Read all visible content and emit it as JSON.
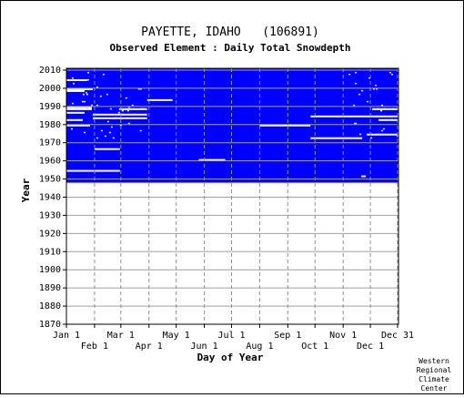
{
  "chart_data": {
    "type": "heatmap",
    "title": "PAYETTE, IDAHO   (106891)",
    "subtitle": "Observed Element : Daily Total Snowdepth",
    "xlabel": "Day of Year",
    "ylabel": "Year",
    "ylim": [
      1870,
      2011
    ],
    "xlim_days": [
      1,
      366
    ],
    "y_ticks": [
      2010,
      2000,
      1990,
      1980,
      1970,
      1960,
      1950,
      1940,
      1930,
      1920,
      1910,
      1900,
      1890,
      1880,
      1870
    ],
    "x_ticks_top_row": [
      {
        "label": "Jan 1",
        "day": 1
      },
      {
        "label": "Mar 1",
        "day": 61
      },
      {
        "label": "May 1",
        "day": 122
      },
      {
        "label": "Jul 1",
        "day": 183
      },
      {
        "label": "Sep 1",
        "day": 245
      },
      {
        "label": "Nov 1",
        "day": 306
      },
      {
        "label": "Dec 31",
        "day": 366
      }
    ],
    "x_ticks_bottom_row": [
      {
        "label": "Feb 1",
        "day": 32
      },
      {
        "label": "Apr 1",
        "day": 92
      },
      {
        "label": "Jun 1",
        "day": 153
      },
      {
        "label": "Aug 1",
        "day": 214
      },
      {
        "label": "Oct 1",
        "day": 275
      },
      {
        "label": "Dec 1",
        "day": 336
      }
    ],
    "data_color": "#0000ff",
    "period_of_record": {
      "start_year": 1948,
      "end_year": 2010
    },
    "missing_segments": [
      {
        "year": 2004,
        "start_day": 1,
        "end_day": 23
      },
      {
        "year": 1999,
        "start_day": 1,
        "end_day": 29
      },
      {
        "year": 1998,
        "start_day": 1,
        "end_day": 20
      },
      {
        "year": 1993,
        "start_day": 90,
        "end_day": 117
      },
      {
        "year": 1989,
        "start_day": 1,
        "end_day": 28
      },
      {
        "year": 1988,
        "start_day": 1,
        "end_day": 28
      },
      {
        "year": 1988,
        "start_day": 59,
        "end_day": 89
      },
      {
        "year": 1988,
        "start_day": 338,
        "end_day": 366
      },
      {
        "year": 1986,
        "start_day": 1,
        "end_day": 20
      },
      {
        "year": 1985,
        "start_day": 30,
        "end_day": 89
      },
      {
        "year": 1984,
        "start_day": 270,
        "end_day": 366
      },
      {
        "year": 1983,
        "start_day": 30,
        "end_day": 89
      },
      {
        "year": 1982,
        "start_day": 1,
        "end_day": 18
      },
      {
        "year": 1982,
        "start_day": 345,
        "end_day": 366
      },
      {
        "year": 1979,
        "start_day": 214,
        "end_day": 269
      },
      {
        "year": 1979,
        "start_day": 1,
        "end_day": 26
      },
      {
        "year": 1974,
        "start_day": 332,
        "end_day": 366
      },
      {
        "year": 1972,
        "start_day": 270,
        "end_day": 326
      },
      {
        "year": 1966,
        "start_day": 32,
        "end_day": 59
      },
      {
        "year": 1960,
        "start_day": 147,
        "end_day": 175
      },
      {
        "year": 1954,
        "start_day": 1,
        "end_day": 59
      },
      {
        "year": 1951,
        "start_day": 326,
        "end_day": 330
      }
    ]
  },
  "footer": {
    "credit_lines": [
      "Western",
      "Regional",
      "Climate",
      "Center"
    ]
  }
}
